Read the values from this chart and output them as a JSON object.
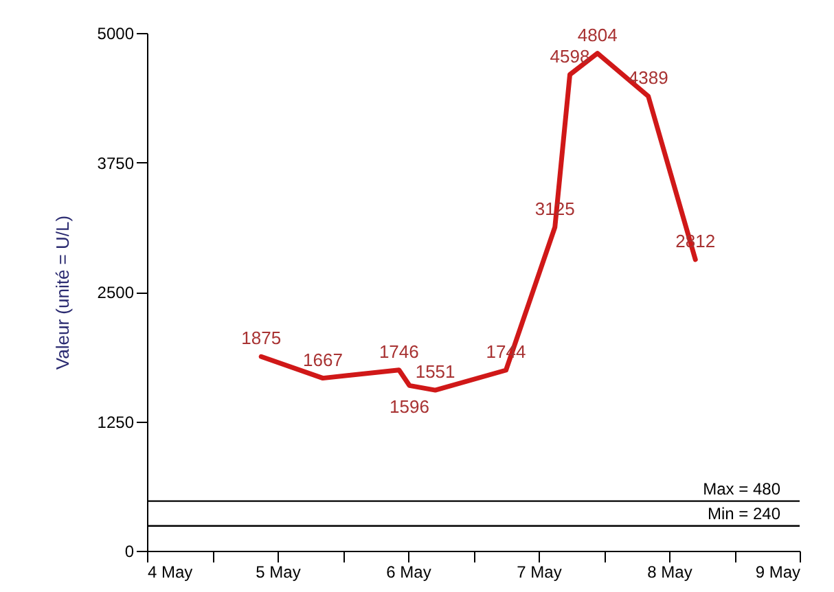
{
  "chart_data": {
    "type": "line",
    "ylabel": "Valeur (unité = U/L)",
    "x": [
      "--05-04T21:00",
      "--05-05T08:20",
      "--05-05T22:20",
      "--05-06T00:15",
      "--05-06T05:00",
      "--05-06T18:00",
      "--05-07T03:00",
      "--05-07T05:45",
      "--05-07T10:50",
      "--05-07T20:10",
      "--05-08T04:50"
    ],
    "series": [
      {
        "color": "#d01818",
        "values": [
          1875,
          1667,
          1746,
          1596,
          1551,
          1744,
          3125,
          4598,
          4804,
          4389,
          2812
        ]
      }
    ],
    "data_labels": true,
    "xlim": [
      "--05-04",
      "--05-09"
    ],
    "xticks": [
      {
        "value": "--05-04",
        "label": "4 May"
      },
      {
        "value": "--05-04T12:00",
        "label": null
      },
      {
        "value": "--05-05",
        "label": "5 May"
      },
      {
        "value": "--05-05T12:00",
        "label": null
      },
      {
        "value": "--05-06",
        "label": "6 May"
      },
      {
        "value": "--05-06T12:00",
        "label": null
      },
      {
        "value": "--05-07",
        "label": "7 May"
      },
      {
        "value": "--05-07T12:00",
        "label": null
      },
      {
        "value": "--05-08",
        "label": "8 May"
      },
      {
        "value": "--05-08T12:00",
        "label": null
      },
      {
        "value": "--05-09",
        "label": "9 May"
      }
    ],
    "ylim": [
      0,
      5000
    ],
    "yticks": [
      0,
      1250,
      2500,
      3750,
      5000
    ],
    "ref_lines": [
      {
        "axis": "y",
        "value": 480,
        "label": "Max = 480",
        "color": "#000000"
      },
      {
        "axis": "y",
        "value": 240,
        "label": "Min = 240",
        "color": "#000000"
      }
    ],
    "grid": false,
    "marker": "none",
    "line_style": "solid"
  }
}
